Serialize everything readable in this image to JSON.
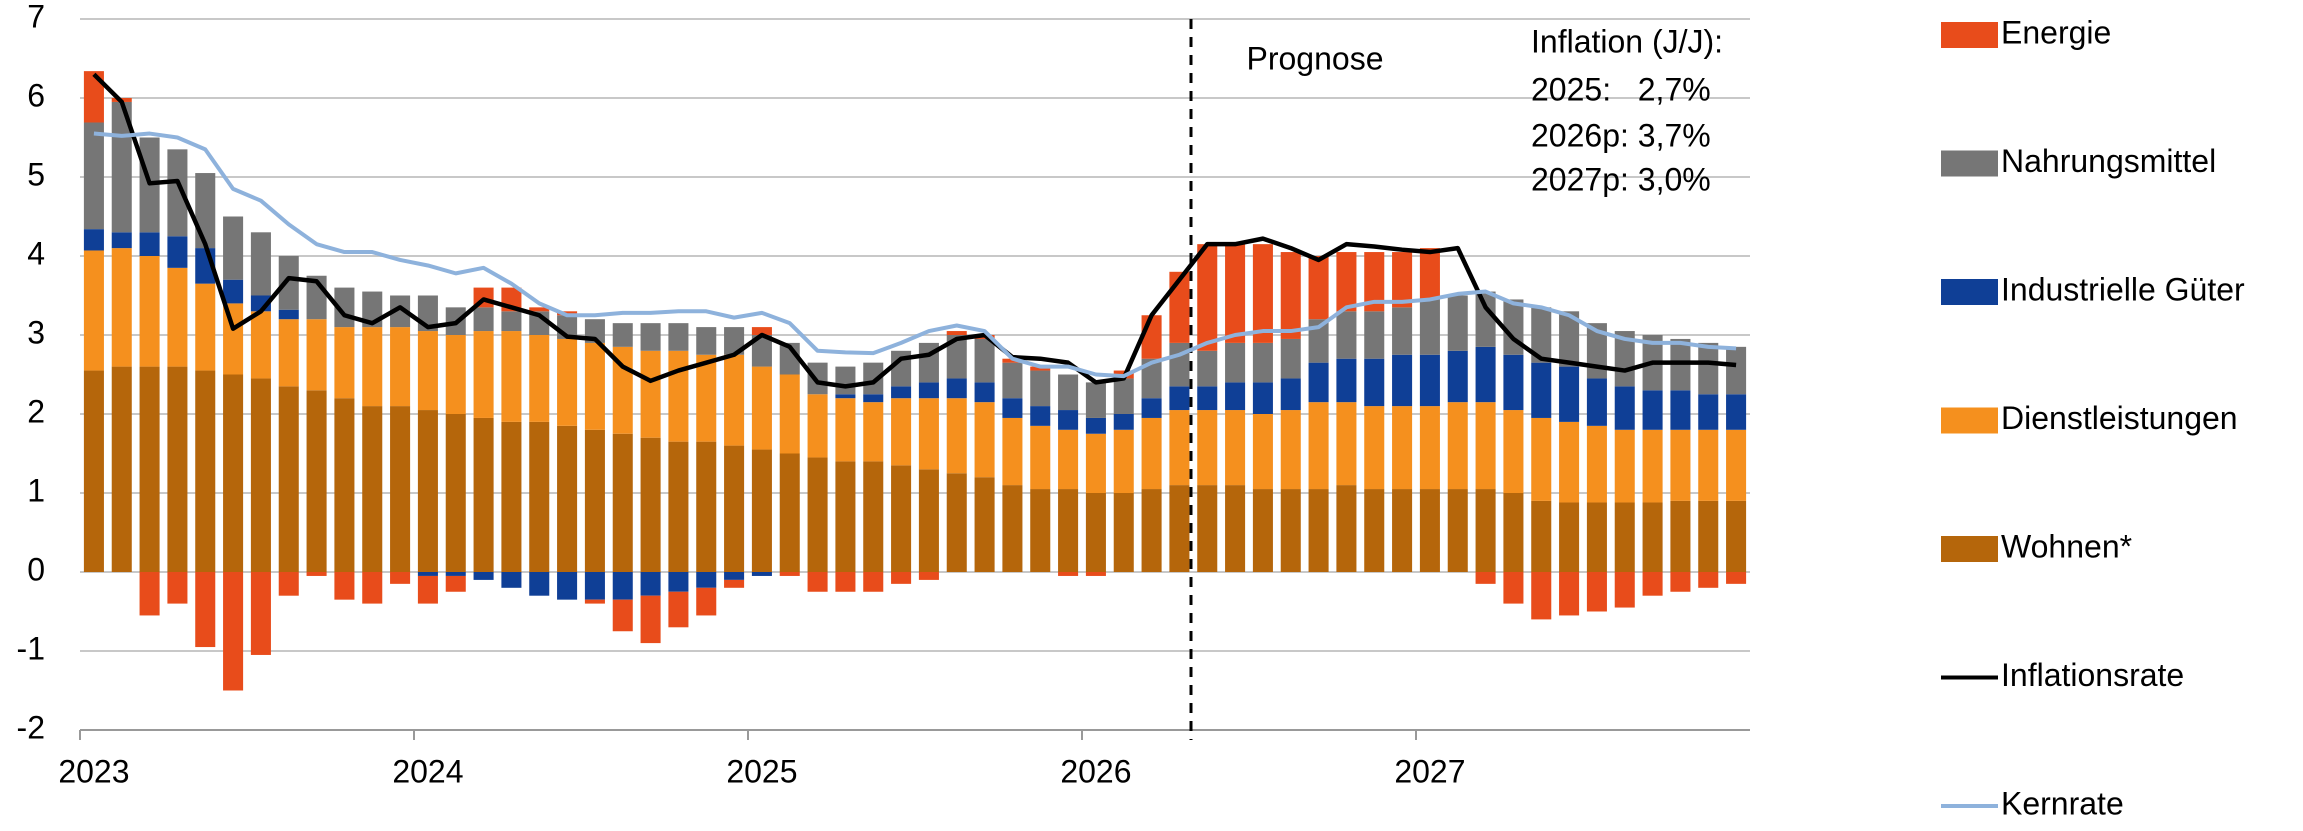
{
  "chart_data": {
    "type": "bar",
    "stacked": true,
    "categories": [
      "2023",
      null,
      null,
      null,
      null,
      null,
      null,
      null,
      null,
      null,
      null,
      null,
      "2024",
      null,
      null,
      null,
      null,
      null,
      null,
      null,
      null,
      null,
      null,
      null,
      "2025",
      null,
      null,
      null,
      null,
      null,
      null,
      null,
      null,
      null,
      null,
      null,
      "2026",
      null,
      null,
      null,
      null,
      null,
      null,
      null,
      null,
      null,
      null,
      null,
      "2027",
      null,
      null,
      null,
      null,
      null,
      null,
      null,
      null,
      null,
      null,
      null
    ],
    "ylim": [
      -2,
      7
    ],
    "yticks": [
      -2,
      -1,
      0,
      1,
      2,
      3,
      4,
      5,
      6,
      7
    ],
    "grid": true,
    "annotations": [
      "Prognose",
      "Inflation (J/J):",
      "2025:   2,7%",
      "2026p: 3,7%",
      "2027p: 3,0%"
    ],
    "series": [
      {
        "name": "Wohnen*",
        "color": "#b5660b",
        "values": [
          2.55,
          2.6,
          2.6,
          2.6,
          2.55,
          2.5,
          2.45,
          2.35,
          2.3,
          2.2,
          2.1,
          2.1,
          2.05,
          2.0,
          1.95,
          1.9,
          1.9,
          1.85,
          1.8,
          1.75,
          1.7,
          1.65,
          1.65,
          1.6,
          1.55,
          1.5,
          1.45,
          1.4,
          1.4,
          1.35,
          1.3,
          1.25,
          1.2,
          1.1,
          1.05,
          1.05,
          1.0,
          1.0,
          1.05,
          1.1,
          1.1,
          1.1,
          1.05,
          1.05,
          1.05,
          1.1,
          1.05,
          1.05,
          1.05,
          1.05,
          1.05,
          1.0,
          0.9,
          0.88,
          0.88,
          0.88,
          0.88,
          0.9,
          0.9,
          0.9
        ]
      },
      {
        "name": "Dienstleistungen",
        "color": "#f5901e",
        "values": [
          1.52,
          1.5,
          1.4,
          1.25,
          1.1,
          0.9,
          0.85,
          0.85,
          0.9,
          0.9,
          1.0,
          1.0,
          1.0,
          1.0,
          1.1,
          1.15,
          1.1,
          1.1,
          1.1,
          1.1,
          1.1,
          1.15,
          1.1,
          1.15,
          1.05,
          1.0,
          0.8,
          0.8,
          0.75,
          0.85,
          0.9,
          0.95,
          0.95,
          0.85,
          0.8,
          0.75,
          0.75,
          0.8,
          0.9,
          0.95,
          0.95,
          0.95,
          0.95,
          1.0,
          1.1,
          1.05,
          1.05,
          1.05,
          1.05,
          1.1,
          1.1,
          1.05,
          1.05,
          1.02,
          0.97,
          0.92,
          0.92,
          0.9,
          0.9,
          0.9
        ]
      },
      {
        "name": "Industrielle Güter",
        "color": "#0f3f96",
        "values": [
          0.27,
          0.2,
          0.3,
          0.4,
          0.45,
          0.3,
          0.2,
          0.12,
          0.0,
          0.0,
          0.0,
          0.0,
          -0.05,
          -0.05,
          -0.1,
          -0.2,
          -0.3,
          -0.35,
          -0.35,
          -0.35,
          -0.3,
          -0.25,
          -0.2,
          -0.1,
          -0.05,
          0.0,
          0.0,
          0.05,
          0.1,
          0.15,
          0.2,
          0.25,
          0.25,
          0.25,
          0.25,
          0.25,
          0.2,
          0.2,
          0.25,
          0.3,
          0.3,
          0.35,
          0.4,
          0.4,
          0.5,
          0.55,
          0.6,
          0.65,
          0.65,
          0.65,
          0.7,
          0.7,
          0.7,
          0.7,
          0.6,
          0.55,
          0.5,
          0.5,
          0.45,
          0.45
        ]
      },
      {
        "name": "Nahrungsmittel",
        "color": "#767676",
        "values": [
          1.35,
          1.65,
          1.2,
          1.1,
          0.95,
          0.8,
          0.8,
          0.68,
          0.55,
          0.5,
          0.45,
          0.4,
          0.45,
          0.35,
          0.3,
          0.25,
          0.3,
          0.3,
          0.3,
          0.3,
          0.35,
          0.35,
          0.35,
          0.35,
          0.4,
          0.4,
          0.4,
          0.35,
          0.4,
          0.45,
          0.5,
          0.55,
          0.55,
          0.45,
          0.45,
          0.45,
          0.45,
          0.45,
          0.5,
          0.55,
          0.45,
          0.5,
          0.5,
          0.5,
          0.55,
          0.6,
          0.6,
          0.6,
          0.7,
          0.7,
          0.7,
          0.7,
          0.7,
          0.7,
          0.7,
          0.7,
          0.7,
          0.65,
          0.65,
          0.6
        ]
      },
      {
        "name": "Energie",
        "color": "#e84c1b",
        "values": [
          0.65,
          0.05,
          -0.55,
          -0.4,
          -0.95,
          -1.5,
          -1.05,
          -0.3,
          -0.05,
          -0.35,
          -0.4,
          -0.15,
          -0.35,
          -0.2,
          0.25,
          0.3,
          0.05,
          0.05,
          -0.05,
          -0.4,
          -0.6,
          -0.45,
          -0.35,
          -0.1,
          0.1,
          -0.05,
          -0.25,
          -0.25,
          -0.25,
          -0.15,
          -0.1,
          0.05,
          0.05,
          0.05,
          0.05,
          -0.05,
          -0.05,
          0.1,
          0.55,
          0.9,
          1.35,
          1.25,
          1.25,
          1.1,
          0.8,
          0.75,
          0.75,
          0.7,
          0.65,
          0,
          -0.15,
          -0.4,
          -0.6,
          -0.55,
          -0.5,
          -0.45,
          -0.3,
          -0.25,
          -0.2,
          -0.15
        ]
      },
      {
        "name": "Inflationsrate",
        "type": "line",
        "color": "#000000",
        "values": [
          6.3,
          5.95,
          4.92,
          4.95,
          4.15,
          3.08,
          3.3,
          3.72,
          3.68,
          3.25,
          3.15,
          3.35,
          3.1,
          3.15,
          3.45,
          3.35,
          3.25,
          2.98,
          2.95,
          2.6,
          2.42,
          2.55,
          2.65,
          2.75,
          3.0,
          2.85,
          2.4,
          2.35,
          2.4,
          2.7,
          2.75,
          2.95,
          3.0,
          2.72,
          2.7,
          2.65,
          2.4,
          2.45,
          3.25,
          3.7,
          4.15,
          4.15,
          4.22,
          4.1,
          3.95,
          4.15,
          4.12,
          4.08,
          4.05,
          4.1,
          3.35,
          2.95,
          2.7,
          2.65,
          2.6,
          2.55,
          2.65,
          2.65,
          2.65,
          2.62
        ]
      },
      {
        "name": "Kernrate",
        "type": "line",
        "color": "#8eb2dc",
        "values": [
          5.55,
          5.52,
          5.55,
          5.5,
          5.35,
          4.85,
          4.7,
          4.4,
          4.15,
          4.05,
          4.05,
          3.95,
          3.88,
          3.78,
          3.85,
          3.65,
          3.4,
          3.25,
          3.25,
          3.28,
          3.28,
          3.3,
          3.3,
          3.22,
          3.28,
          3.15,
          2.8,
          2.78,
          2.77,
          2.9,
          3.05,
          3.12,
          3.05,
          2.7,
          2.6,
          2.6,
          2.5,
          2.48,
          2.65,
          2.75,
          2.9,
          3.0,
          3.05,
          3.05,
          3.1,
          3.35,
          3.42,
          3.42,
          3.45,
          3.52,
          3.55,
          3.4,
          3.35,
          3.25,
          3.05,
          2.95,
          2.9,
          2.9,
          2.85,
          2.83
        ]
      }
    ]
  }
}
